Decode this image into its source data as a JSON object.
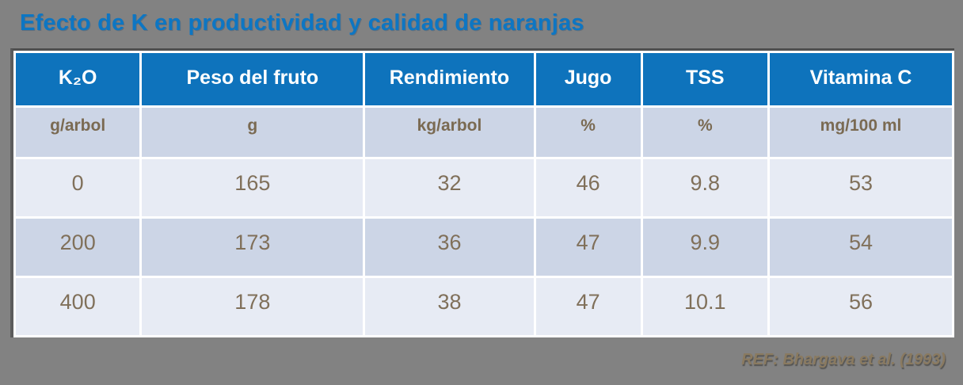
{
  "page": {
    "title": "Efecto de K en productividad y calidad de naranjas",
    "reference": "REF: Bhargava et al. (1993)",
    "colors": {
      "background": "#828282",
      "title_text": "#0d76c3",
      "header_bg": "#0e73bc",
      "header_text": "#ffffff",
      "units_row_bg": "#ccd5e6",
      "row_light_bg": "#e7ebf4",
      "row_dark_bg": "#ccd5e6",
      "body_text": "#80705a",
      "reference_text": "#8a7a60"
    }
  },
  "table": {
    "columns": [
      {
        "header": "K₂O",
        "unit": "g/arbol"
      },
      {
        "header": "Peso del fruto",
        "unit": "g"
      },
      {
        "header": "Rendimiento",
        "unit": "kg/arbol"
      },
      {
        "header": "Jugo",
        "unit": "%"
      },
      {
        "header": "TSS",
        "unit": "%"
      },
      {
        "header": "Vitamina C",
        "unit": "mg/100 ml"
      }
    ],
    "rows": [
      [
        "0",
        "165",
        "32",
        "46",
        "9.8",
        "53"
      ],
      [
        "200",
        "173",
        "36",
        "47",
        "9.9",
        "54"
      ],
      [
        "400",
        "178",
        "38",
        "47",
        "10.1",
        "56"
      ]
    ]
  },
  "chart_data": {
    "type": "table",
    "title": "Efecto de K en productividad y calidad de naranjas",
    "columns": [
      "K₂O (g/arbol)",
      "Peso del fruto (g)",
      "Rendimiento (kg/arbol)",
      "Jugo (%)",
      "TSS (%)",
      "Vitamina C (mg/100 ml)"
    ],
    "rows": [
      [
        0,
        165,
        32,
        46,
        9.8,
        53
      ],
      [
        200,
        173,
        36,
        47,
        9.9,
        54
      ],
      [
        400,
        178,
        38,
        47,
        10.1,
        56
      ]
    ],
    "source": "REF: Bhargava et al. (1993)"
  }
}
